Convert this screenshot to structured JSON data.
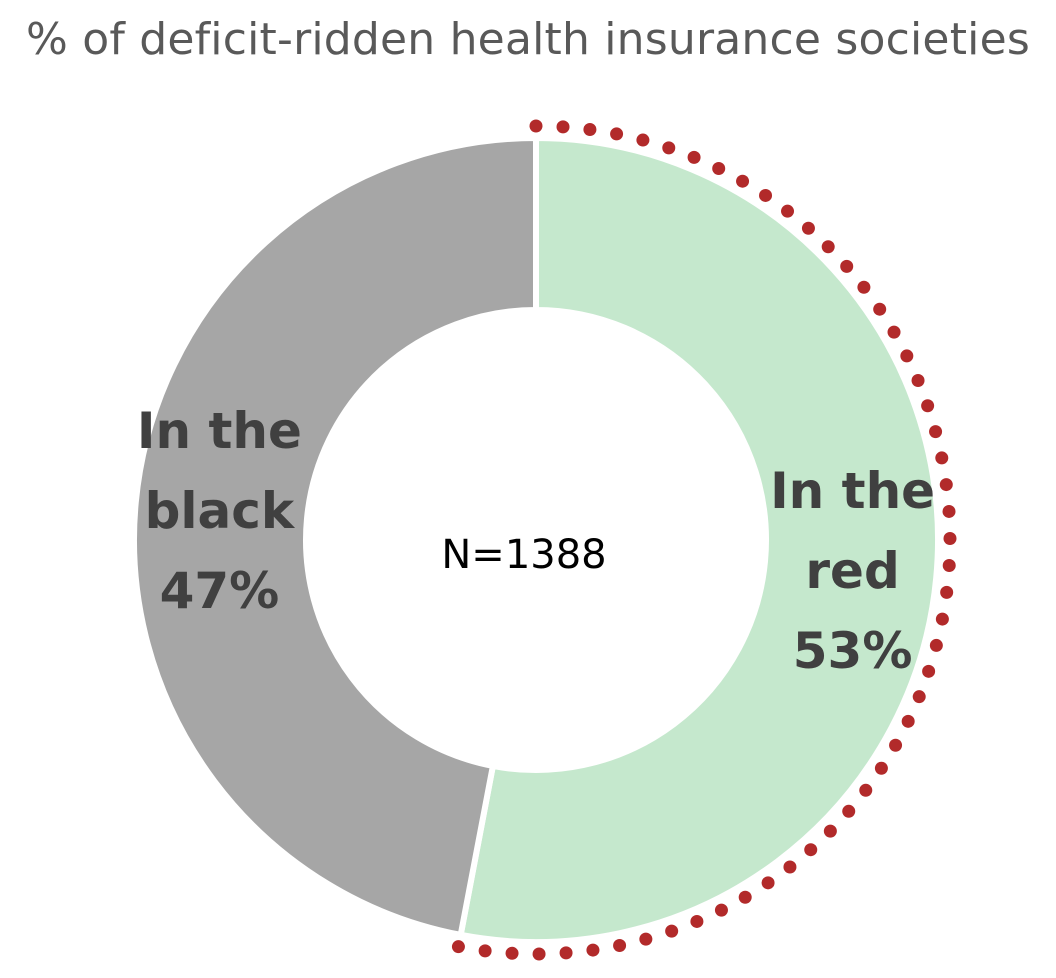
{
  "chart_data": {
    "type": "pie",
    "title": "% of deficit-ridden health insurance societies",
    "center_text": "N=1388",
    "slices": [
      {
        "label_lines": [
          "In the",
          "red",
          "53%"
        ],
        "value": 53,
        "color": "#c5e8cd"
      },
      {
        "label_lines": [
          "In the",
          "black",
          "47%"
        ],
        "value": 47,
        "color": "#a6a6a6"
      }
    ],
    "highlight": {
      "slice": 0,
      "style": "dotted",
      "color": "#b22a2a"
    }
  }
}
